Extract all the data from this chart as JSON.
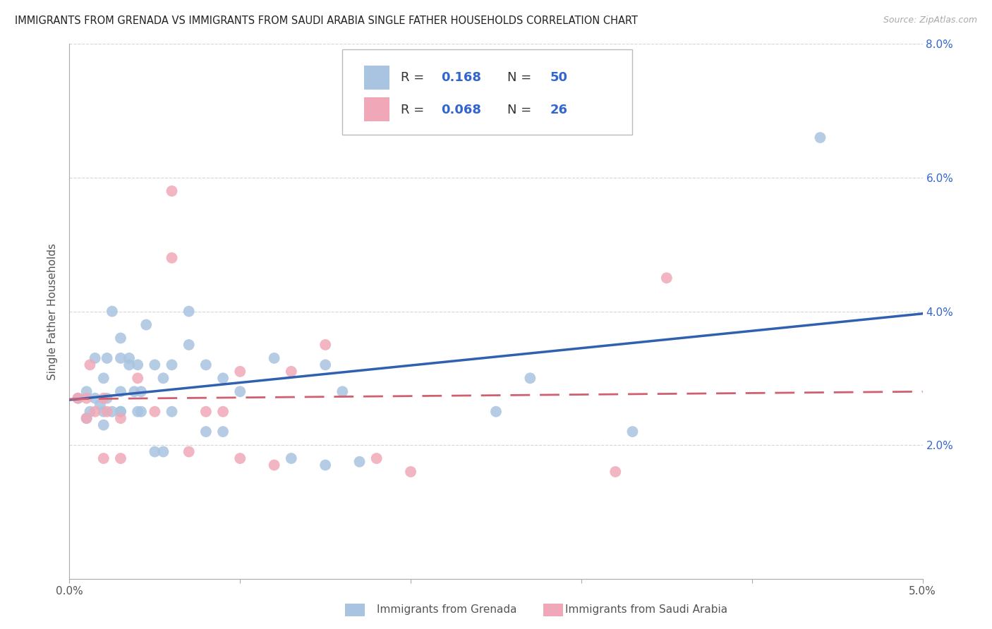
{
  "title": "IMMIGRANTS FROM GRENADA VS IMMIGRANTS FROM SAUDI ARABIA SINGLE FATHER HOUSEHOLDS CORRELATION CHART",
  "source": "Source: ZipAtlas.com",
  "xlabel_grenada": "Immigrants from Grenada",
  "xlabel_saudi": "Immigrants from Saudi Arabia",
  "ylabel": "Single Father Households",
  "xlim": [
    0.0,
    0.05
  ],
  "ylim": [
    0.0,
    0.08
  ],
  "xtick_pos": [
    0.0,
    0.01,
    0.02,
    0.03,
    0.04,
    0.05
  ],
  "xtick_labels_show": [
    "0.0%",
    "",
    "",
    "",
    "",
    "5.0%"
  ],
  "yticks": [
    0.0,
    0.02,
    0.04,
    0.06,
    0.08
  ],
  "ytick_labels_right": [
    "",
    "2.0%",
    "4.0%",
    "6.0%",
    "8.0%"
  ],
  "R_grenada": 0.168,
  "N_grenada": 50,
  "R_saudi": 0.068,
  "N_saudi": 26,
  "color_grenada": "#a8c4e0",
  "color_saudi": "#f0a8b8",
  "line_color_grenada": "#3060b0",
  "line_color_saudi": "#d06070",
  "background_color": "#ffffff",
  "grid_color": "#cccccc",
  "grenada_x": [
    0.0005,
    0.001,
    0.001,
    0.0012,
    0.0015,
    0.0015,
    0.0018,
    0.002,
    0.002,
    0.002,
    0.0022,
    0.0022,
    0.0025,
    0.0025,
    0.003,
    0.003,
    0.003,
    0.003,
    0.003,
    0.0035,
    0.0035,
    0.0038,
    0.004,
    0.004,
    0.0042,
    0.0042,
    0.0045,
    0.005,
    0.005,
    0.0055,
    0.0055,
    0.006,
    0.006,
    0.007,
    0.007,
    0.008,
    0.008,
    0.009,
    0.009,
    0.01,
    0.012,
    0.013,
    0.015,
    0.015,
    0.016,
    0.017,
    0.025,
    0.027,
    0.033,
    0.044
  ],
  "grenada_y": [
    0.027,
    0.028,
    0.024,
    0.025,
    0.033,
    0.027,
    0.026,
    0.03,
    0.023,
    0.025,
    0.033,
    0.027,
    0.025,
    0.04,
    0.033,
    0.025,
    0.036,
    0.028,
    0.025,
    0.032,
    0.033,
    0.028,
    0.025,
    0.032,
    0.028,
    0.025,
    0.038,
    0.032,
    0.019,
    0.03,
    0.019,
    0.032,
    0.025,
    0.04,
    0.035,
    0.032,
    0.022,
    0.022,
    0.03,
    0.028,
    0.033,
    0.018,
    0.017,
    0.032,
    0.028,
    0.0175,
    0.025,
    0.03,
    0.022,
    0.066
  ],
  "saudi_x": [
    0.0005,
    0.001,
    0.001,
    0.0012,
    0.0015,
    0.002,
    0.002,
    0.0022,
    0.003,
    0.003,
    0.004,
    0.005,
    0.006,
    0.006,
    0.007,
    0.008,
    0.009,
    0.01,
    0.01,
    0.012,
    0.013,
    0.015,
    0.018,
    0.02,
    0.032,
    0.035
  ],
  "saudi_y": [
    0.027,
    0.027,
    0.024,
    0.032,
    0.025,
    0.027,
    0.018,
    0.025,
    0.024,
    0.018,
    0.03,
    0.025,
    0.058,
    0.048,
    0.019,
    0.025,
    0.025,
    0.031,
    0.018,
    0.017,
    0.031,
    0.035,
    0.018,
    0.016,
    0.016,
    0.045
  ]
}
